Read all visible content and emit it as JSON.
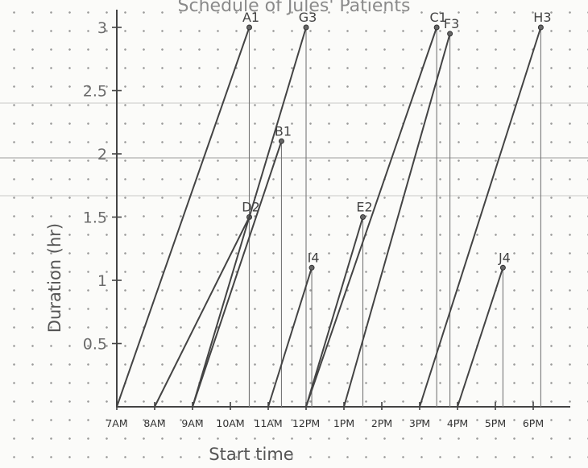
{
  "chart_data": {
    "type": "line",
    "title": "Schedule of Jules' Patients",
    "xlabel": "Start time",
    "ylabel": "Duration (hr)",
    "x_ticks": [
      "7AM",
      "8AM",
      "9AM",
      "10AM",
      "11AM",
      "12PM",
      "1PM",
      "2PM",
      "3PM",
      "4PM",
      "5PM",
      "6PM"
    ],
    "y_ticks": [
      "0.5",
      "1",
      "1.5",
      "2",
      "2.5",
      "3"
    ],
    "xlim": [
      "7AM",
      "6:30PM"
    ],
    "ylim": [
      0,
      3.1
    ],
    "grid": false,
    "series": [
      {
        "name": "A1",
        "x0": 7.0,
        "x": 10.5,
        "y": 3.0
      },
      {
        "name": "D2",
        "x0": 8.0,
        "x": 10.5,
        "y": 1.5
      },
      {
        "name": "B1",
        "x0": 9.0,
        "x": 11.35,
        "y": 2.1
      },
      {
        "name": "G3",
        "x0": 9.0,
        "x": 12.0,
        "y": 3.0
      },
      {
        "name": "I4",
        "x0": 11.0,
        "x": 12.15,
        "y": 1.1
      },
      {
        "name": "E2",
        "x0": 12.0,
        "x": 13.5,
        "y": 1.5
      },
      {
        "name": "C1",
        "x0": 12.0,
        "x": 15.45,
        "y": 3.0
      },
      {
        "name": "F3",
        "x0": 13.0,
        "x": 15.8,
        "y": 2.95
      },
      {
        "name": "H3",
        "x0": 15.0,
        "x": 18.2,
        "y": 3.0
      },
      {
        "name": "J4",
        "x0": 16.0,
        "x": 17.2,
        "y": 1.1
      }
    ]
  }
}
